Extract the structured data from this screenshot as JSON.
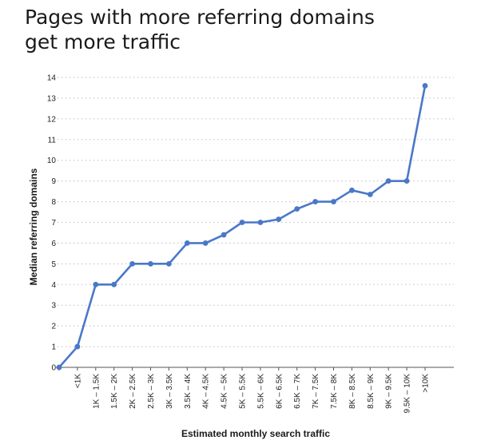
{
  "chart_data": {
    "type": "line",
    "title_lines": [
      "Pages with more referring domains",
      "get more traffic"
    ],
    "xlabel": "Estimated monthly search traffic",
    "ylabel": "Median referring domains",
    "categories": [
      "0",
      "<1K",
      "1K – 1.5K",
      "1.5K – 2K",
      "2K – 2.5K",
      "2.5K – 3K",
      "3K – 3.5K",
      "3.5K – 4K",
      "4K – 4.5K",
      "4.5K – 5K",
      "5K – 5.5K",
      "5.5K – 6K",
      "6K – 6.5K",
      "6.5K – 7K",
      "7K – 7.5K",
      "7.5K – 8K",
      "8K – 8.5K",
      "8.5K – 9K",
      "9K – 9.5K",
      "9.5K – 10K",
      ">10K"
    ],
    "x_tick_labels": [
      "<1K",
      "1K – 1.5K",
      "1.5K – 2K",
      "2K – 2.5K",
      "2.5K – 3K",
      "3K – 3.5K",
      "3.5K – 4K",
      "4K – 4.5K",
      "4.5K – 5K",
      "5K – 5.5K",
      "5.5K – 6K",
      "6K – 6.5K",
      "6.5K – 7K",
      "7K – 7.5K",
      "7.5K – 8K",
      "8K – 8.5K",
      "8.5K – 9K",
      "9K – 9.5K",
      "9.5K – 10K",
      ">10K"
    ],
    "values": [
      0,
      1,
      4,
      4,
      5,
      5,
      5,
      6,
      6,
      6.4,
      7,
      7,
      7.15,
      7.65,
      8,
      8,
      8.55,
      8.35,
      9,
      9,
      13.6
    ],
    "ylim": [
      0,
      14
    ],
    "yticks": [
      0,
      1,
      2,
      3,
      4,
      5,
      6,
      7,
      8,
      9,
      10,
      11,
      12,
      13,
      14
    ],
    "grid": "horizontal dotted",
    "line_color": "#4a78c8",
    "grid_color": "#bfbfbf",
    "axis_color": "#555555"
  }
}
